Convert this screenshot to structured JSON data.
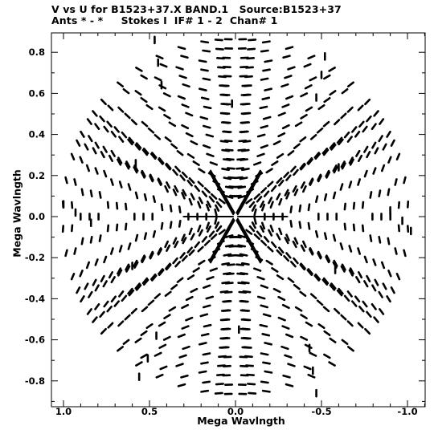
{
  "title_line1": "V vs U for B1523+37.X BAND.1   Source:B1523+37",
  "title_line2": "Ants * - *     Stokes I  IF# 1 - 2  Chan# 1",
  "chart_data": {
    "type": "scatter",
    "title": "V vs U for B1523+37.X BAND.1   Source:B1523+37",
    "subtitle": "Ants * - *     Stokes I  IF# 1 - 2  Chan# 1",
    "xlabel": "Mega Wavlngth",
    "ylabel": "Mega Wavlngth",
    "xlim": [
      1.05,
      -1.1
    ],
    "ylim": [
      -0.9,
      0.9
    ],
    "x_inverted": true,
    "x_ticks": [
      1.0,
      0.5,
      0.0,
      -0.5,
      -1.0
    ],
    "x_tick_labels": [
      "1.0",
      "0.5",
      "0.0",
      "-0.5",
      "-1.0"
    ],
    "y_ticks": [
      0.8,
      0.6,
      0.4,
      0.2,
      0.0,
      -0.2,
      -0.4,
      -0.6,
      -0.8
    ],
    "y_tick_labels": [
      "0.8",
      "0.6",
      "0.4",
      "0.2",
      "0.0",
      "-0.2",
      "-0.4",
      "-0.6",
      "-0.8"
    ],
    "grid": false,
    "marker_color": "#000000",
    "pattern": "six-fold symmetric uv-coverage of short dashed arcs; arms reach u,v extremes",
    "arm_extents": [
      {
        "u": 1.0,
        "v": 0.06
      },
      {
        "u": -1.02,
        "v": -0.07
      },
      {
        "u": 0.5,
        "v": 0.85
      },
      {
        "u": -0.55,
        "v": 0.78
      },
      {
        "u": 0.55,
        "v": -0.78
      },
      {
        "u": -0.5,
        "v": -0.85
      }
    ],
    "series": [
      {
        "values": [
          {
            "x": 1.0,
            "y": 0.06
          },
          {
            "x": 0.93,
            "y": 0.02
          },
          {
            "x": 0.84,
            "y": -0.03
          },
          {
            "x": -0.97,
            "y": -0.02
          },
          {
            "x": -1.02,
            "y": -0.07
          },
          {
            "x": -0.9,
            "y": 0.03
          },
          {
            "x": 0.47,
            "y": 0.86
          },
          {
            "x": 0.45,
            "y": 0.75
          },
          {
            "x": 0.43,
            "y": 0.64
          },
          {
            "x": -0.52,
            "y": 0.78
          },
          {
            "x": -0.5,
            "y": 0.69
          },
          {
            "x": -0.47,
            "y": 0.58
          },
          {
            "x": 0.56,
            "y": -0.78
          },
          {
            "x": 0.51,
            "y": -0.69
          },
          {
            "x": 0.46,
            "y": -0.58
          },
          {
            "x": -0.47,
            "y": -0.86
          },
          {
            "x": -0.45,
            "y": -0.75
          },
          {
            "x": -0.43,
            "y": -0.64
          },
          {
            "x": 0.02,
            "y": 0.55
          },
          {
            "x": -0.02,
            "y": -0.55
          },
          {
            "x": 0.58,
            "y": 0.26
          },
          {
            "x": -0.58,
            "y": -0.26
          },
          {
            "x": 0.6,
            "y": -0.24
          },
          {
            "x": -0.6,
            "y": 0.24
          }
        ]
      }
    ]
  }
}
